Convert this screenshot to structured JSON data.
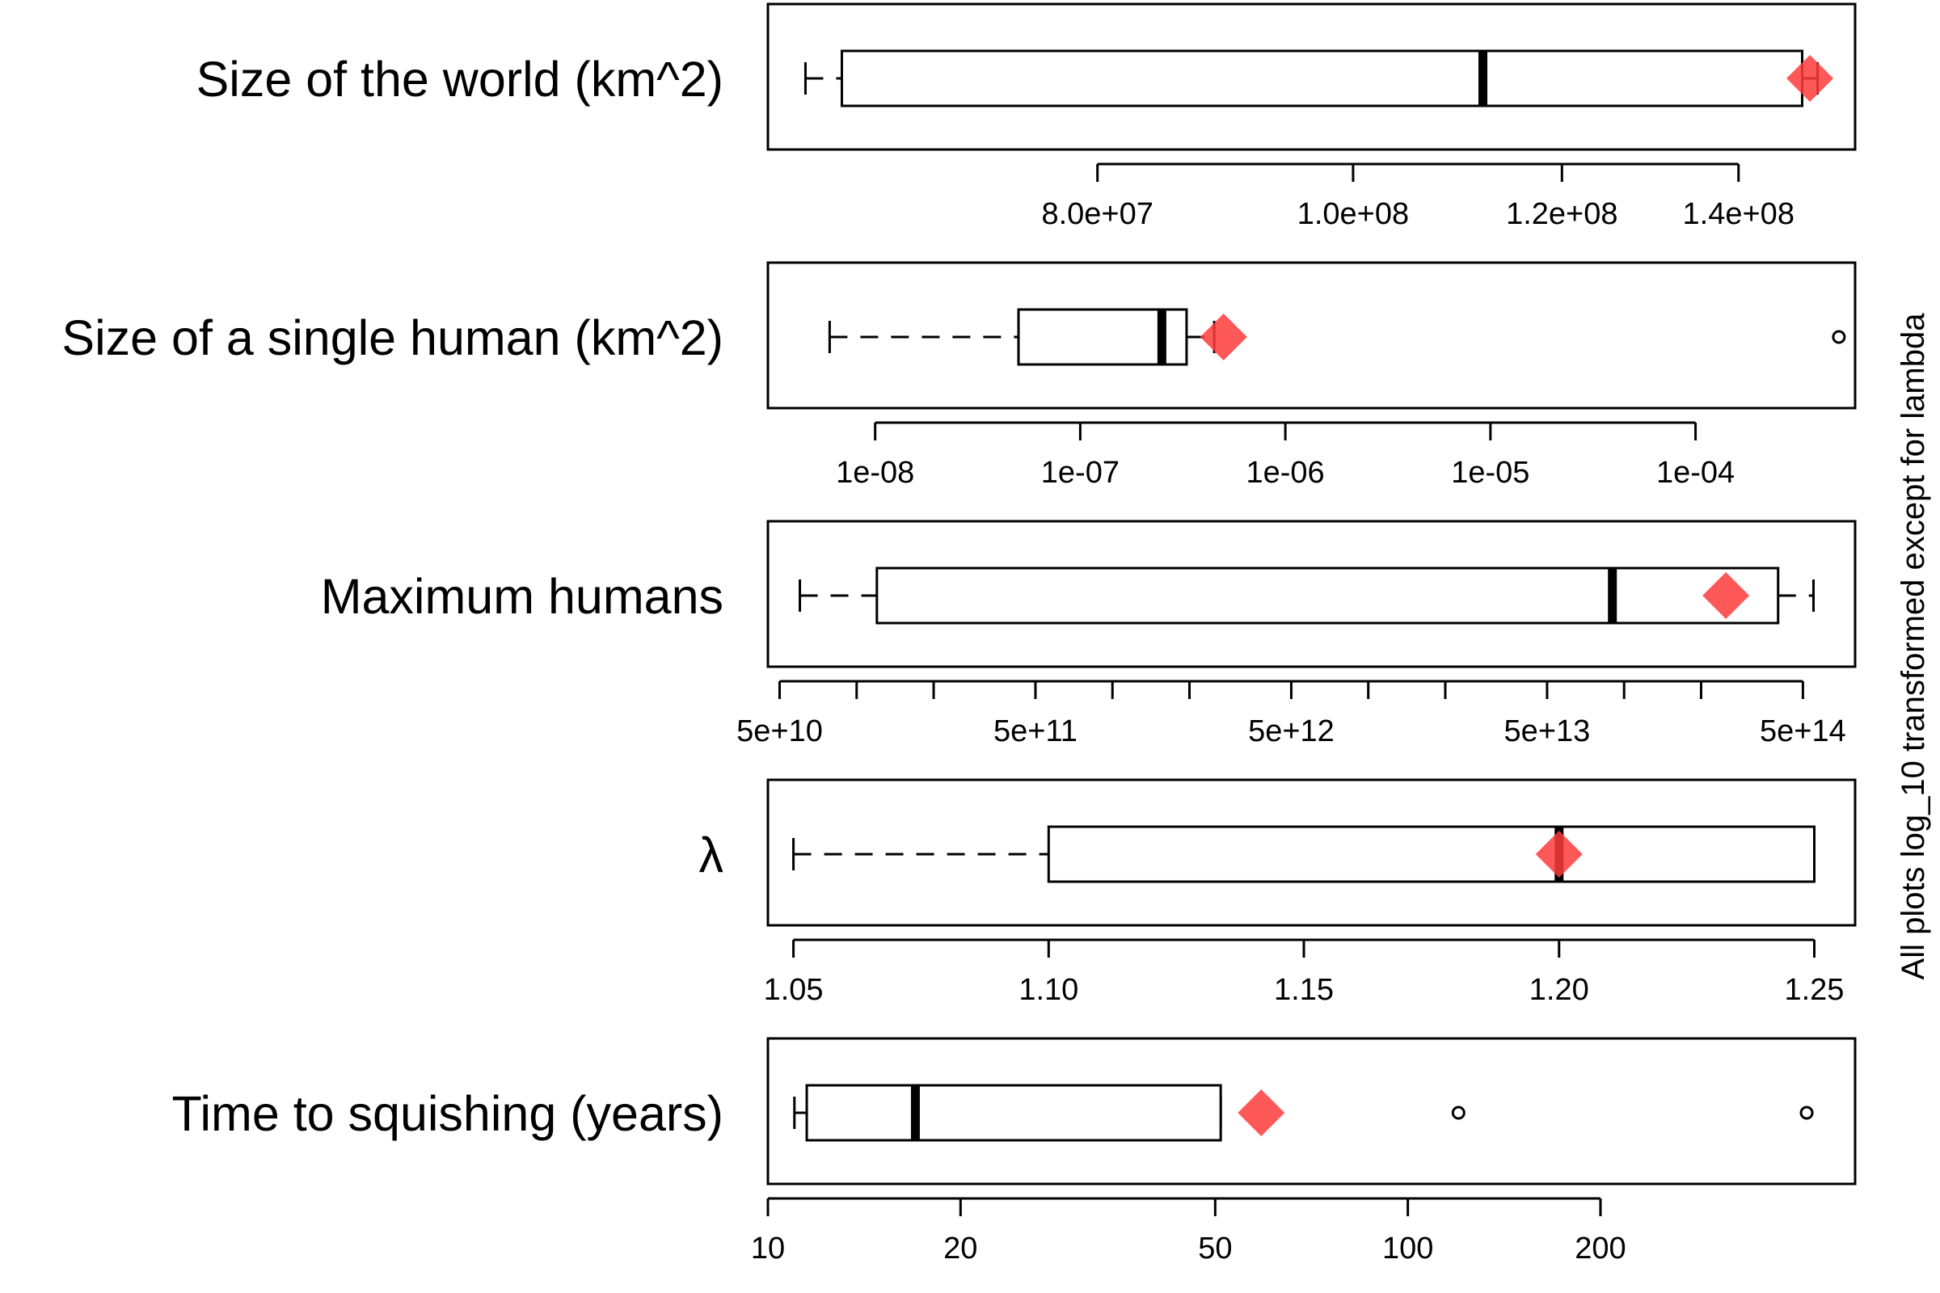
{
  "side_note": "All plots log_10 transformed except for lambda",
  "marker_color": "#ff3b3b",
  "chart_data": [
    {
      "type": "boxplot",
      "title": "Size of the world (km^2)",
      "scale": "log10",
      "xlim": [
        60000000,
        155000000
      ],
      "ticks": [
        80000000,
        100000000,
        120000000,
        140000000
      ],
      "tick_labels": [
        "8.0e+07",
        "1.0e+08",
        "1.2e+08",
        "1.4e+08"
      ],
      "whisker_low": 62000000,
      "q1": 64000000,
      "median": 112000000,
      "q3": 148000000,
      "whisker_high": 150000000,
      "outliers": [],
      "marker": 149000000
    },
    {
      "type": "boxplot",
      "title": "Size of a single human (km^2)",
      "scale": "log10",
      "xlim": [
        3e-09,
        0.0006
      ],
      "ticks": [
        1e-08,
        1e-07,
        1e-06,
        1e-05,
        0.0001
      ],
      "tick_labels": [
        "1e-08",
        "1e-07",
        "1e-06",
        "1e-05",
        "1e-04"
      ],
      "whisker_low": 6e-09,
      "q1": 5e-08,
      "median": 2.5e-07,
      "q3": 3.3e-07,
      "whisker_high": 4.5e-07,
      "outliers": [
        0.0005
      ],
      "marker": 5e-07
    },
    {
      "type": "boxplot",
      "title": "Maximum humans",
      "scale": "log10",
      "xlim": [
        45000000000,
        800000000000000
      ],
      "ticks": [
        50000000000,
        100000000000,
        200000000000,
        500000000000,
        1000000000000,
        2000000000000,
        5000000000000,
        10000000000000,
        20000000000000,
        50000000000000,
        100000000000000,
        200000000000000,
        500000000000000
      ],
      "tick_labels": [
        "5e+10",
        "",
        "",
        "5e+11",
        "",
        "",
        "5e+12",
        "",
        "",
        "5e+13",
        "",
        "",
        "5e+14"
      ],
      "whisker_low": 60000000000,
      "q1": 120000000000,
      "median": 90000000000000,
      "q3": 400000000000000,
      "whisker_high": 550000000000000,
      "outliers": [],
      "marker": 250000000000000
    },
    {
      "type": "boxplot",
      "title": "λ",
      "scale": "linear",
      "xlim": [
        1.045,
        1.258
      ],
      "ticks": [
        1.05,
        1.1,
        1.15,
        1.2,
        1.25
      ],
      "tick_labels": [
        "1.05",
        "1.10",
        "1.15",
        "1.20",
        "1.25"
      ],
      "whisker_low": 1.05,
      "q1": 1.1,
      "median": 1.2,
      "q3": 1.25,
      "whisker_high": 1.25,
      "outliers": [],
      "marker": 1.2
    },
    {
      "type": "boxplot",
      "title": "Time to squishing (years)",
      "scale": "log10",
      "xlim": [
        10,
        500
      ],
      "ticks": [
        10,
        20,
        50,
        100,
        200
      ],
      "tick_labels": [
        "10",
        "20",
        "50",
        "100",
        "200"
      ],
      "whisker_low": 11,
      "q1": 11.5,
      "median": 17,
      "q3": 51,
      "whisker_high": 51,
      "outliers": [
        120,
        420
      ],
      "marker": 59
    }
  ]
}
